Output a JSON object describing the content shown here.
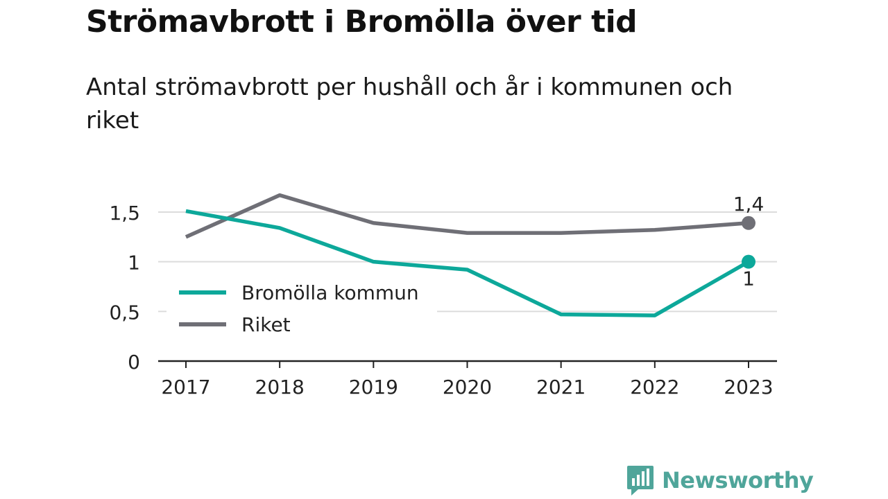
{
  "title": "Strömavbrott i Bromölla över tid",
  "subtitle": "Antal strömavbrott per hushåll och år i kommunen och riket",
  "brand": {
    "name": "Newsworthy",
    "color": "#4fa59a",
    "icon": "newsworthy-chart-bubble-icon"
  },
  "chart_data": {
    "type": "line",
    "x": [
      "2017",
      "2018",
      "2019",
      "2020",
      "2021",
      "2022",
      "2023"
    ],
    "y_ticks": [
      "0",
      "0,5",
      "1",
      "1,5"
    ],
    "y_tick_values": [
      0,
      0.5,
      1,
      1.5
    ],
    "ylim": [
      0,
      1.5
    ],
    "grid": true,
    "legend_position": "bottom-left",
    "series": [
      {
        "name": "Bromölla kommun",
        "color": "#0da89a",
        "values": [
          1.51,
          1.34,
          1.0,
          0.92,
          0.47,
          0.46,
          1.0
        ],
        "end_label": "1",
        "end_label_position": "below"
      },
      {
        "name": "Riket",
        "color": "#6f6f76",
        "values": [
          1.25,
          1.67,
          1.39,
          1.29,
          1.29,
          1.32,
          1.39
        ],
        "end_label": "1,4",
        "end_label_position": "above"
      }
    ]
  }
}
